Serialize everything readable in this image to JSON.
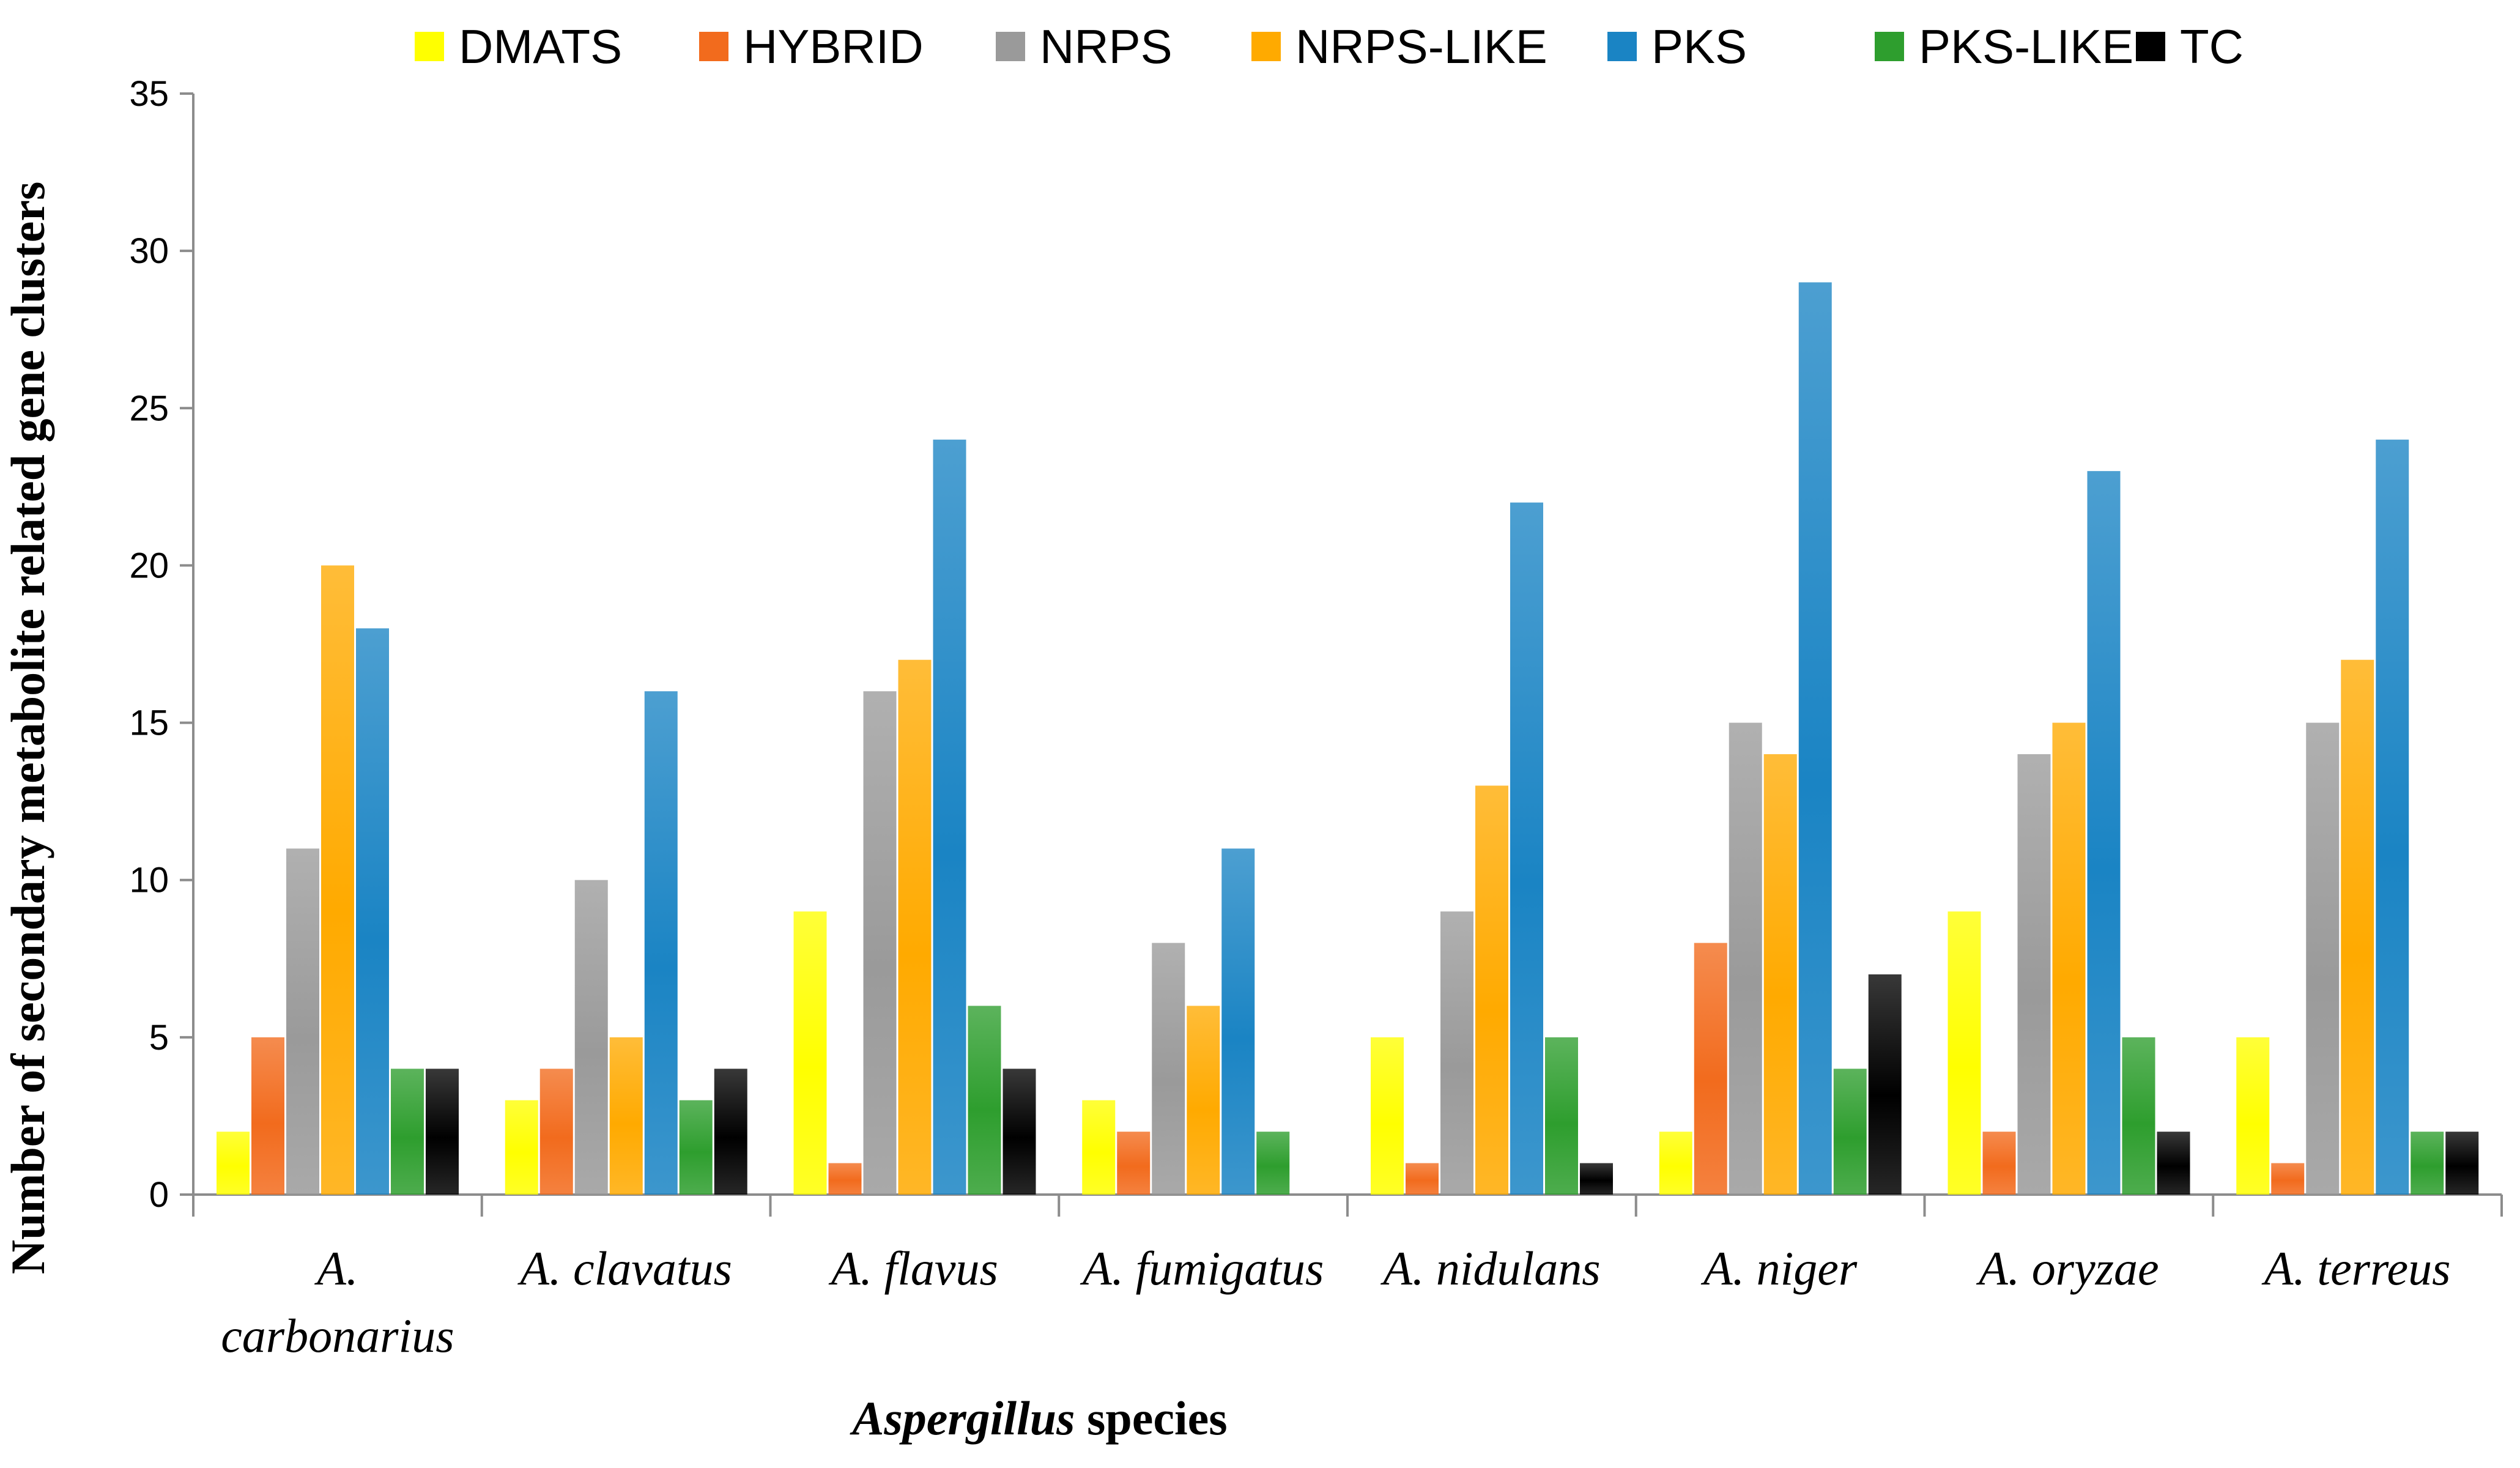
{
  "chart_data": {
    "type": "bar",
    "title": "",
    "xlabel_italic": "Aspergillus",
    "xlabel_rest": " species",
    "ylabel": "Number of secondary metabolite related gene clusters",
    "ylim": [
      0,
      35
    ],
    "yticks": [
      0,
      5,
      10,
      15,
      20,
      25,
      30,
      35
    ],
    "legend_position": "top",
    "categories": [
      [
        "A.",
        "carbonarius"
      ],
      [
        "A. clavatus"
      ],
      [
        "A. flavus"
      ],
      [
        "A. fumigatus"
      ],
      [
        "A. nidulans"
      ],
      [
        "A. niger"
      ],
      [
        "A. oryzae"
      ],
      [
        "A. terreus"
      ]
    ],
    "series": [
      {
        "name": "DMATS",
        "color": "#FFFF00",
        "values": [
          2,
          3,
          9,
          3,
          5,
          2,
          9,
          5
        ]
      },
      {
        "name": "HYBRID",
        "color": "#F26B1D",
        "values": [
          5,
          4,
          1,
          2,
          1,
          8,
          2,
          1
        ]
      },
      {
        "name": "NRPS",
        "color": "#9A9A9A",
        "values": [
          11,
          10,
          16,
          8,
          9,
          15,
          14,
          15
        ]
      },
      {
        "name": "NRPS-LIKE",
        "color": "#FFAA00",
        "values": [
          20,
          5,
          17,
          6,
          13,
          14,
          15,
          17
        ]
      },
      {
        "name": "PKS",
        "color": "#1A84C4",
        "values": [
          18,
          16,
          24,
          11,
          22,
          29,
          23,
          24
        ]
      },
      {
        "name": "PKS-LIKE",
        "color": "#2E9E2E",
        "values": [
          4,
          3,
          6,
          2,
          5,
          4,
          5,
          2
        ]
      },
      {
        "name": "TC",
        "color": "#000000",
        "values": [
          4,
          4,
          4,
          0,
          1,
          7,
          2,
          2
        ]
      }
    ]
  }
}
